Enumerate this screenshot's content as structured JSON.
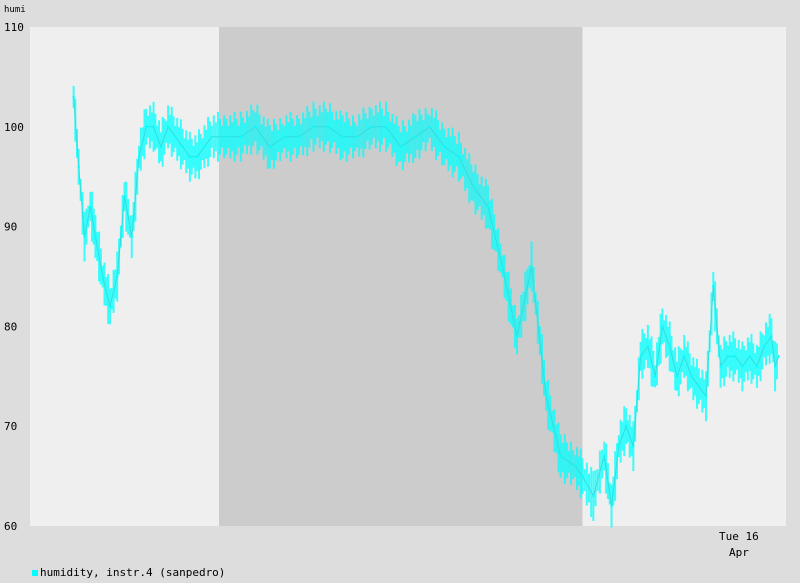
{
  "chart_data": {
    "type": "line",
    "ylabel": "humi",
    "ylim": [
      60,
      110
    ],
    "y_ticks": [
      110,
      100,
      90,
      80,
      70,
      60
    ],
    "x_ticks": [
      {
        "label_line1": "Tue 16",
        "label_line2": "Apr",
        "x": 1.0
      }
    ],
    "xlim": [
      0,
      1.04
    ],
    "night_band": [
      0.26,
      0.76
    ],
    "colors": {
      "page_bg": "#dddddd",
      "plot_bg": "#efefef",
      "night_band": "#cccccc",
      "series": "#00ffff"
    },
    "series": [
      {
        "name": "humidity, instr.4 (sanpedro)",
        "x": [
          0.06,
          0.067,
          0.075,
          0.083,
          0.09,
          0.1,
          0.11,
          0.12,
          0.13,
          0.14,
          0.15,
          0.16,
          0.17,
          0.18,
          0.19,
          0.2,
          0.21,
          0.22,
          0.23,
          0.24,
          0.25,
          0.27,
          0.29,
          0.31,
          0.33,
          0.35,
          0.37,
          0.39,
          0.41,
          0.43,
          0.45,
          0.47,
          0.49,
          0.51,
          0.53,
          0.55,
          0.57,
          0.59,
          0.61,
          0.63,
          0.65,
          0.67,
          0.69,
          0.71,
          0.73,
          0.75,
          0.76,
          0.775,
          0.79,
          0.8,
          0.81,
          0.82,
          0.83,
          0.84,
          0.85,
          0.86,
          0.87,
          0.88,
          0.89,
          0.9,
          0.91,
          0.92,
          0.93,
          0.94,
          0.95,
          0.96,
          0.97,
          0.98,
          0.99,
          1.0,
          1.01,
          1.02,
          1.025,
          1.03
        ],
        "y": [
          103,
          96,
          89,
          92,
          89,
          85,
          82,
          85,
          93,
          89,
          97,
          100,
          100,
          98,
          100,
          99,
          98,
          97,
          97,
          98,
          99,
          99,
          99,
          100,
          98,
          99,
          99,
          100,
          100,
          99,
          99,
          100,
          100,
          98,
          99,
          100,
          98,
          97,
          94,
          92,
          86,
          79,
          86,
          73,
          67,
          66,
          65,
          63,
          67,
          62,
          68,
          70,
          68,
          77,
          78,
          75,
          80,
          78,
          75,
          77,
          75,
          74,
          73,
          84,
          76,
          77,
          77,
          76,
          77,
          76,
          78,
          79,
          76,
          77
        ]
      }
    ]
  },
  "legend": {
    "label": "humidity, instr.4 (sanpedro)"
  }
}
